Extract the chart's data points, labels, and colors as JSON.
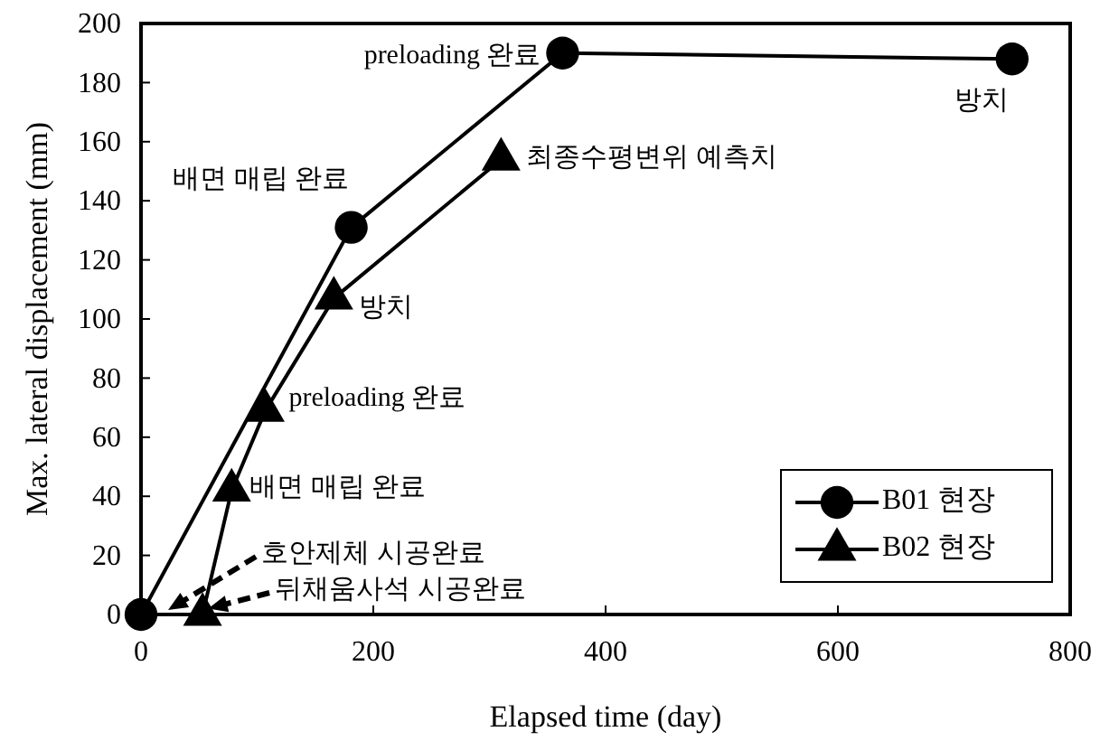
{
  "chart_data": {
    "type": "line",
    "xlabel": "Elapsed time (day)",
    "ylabel": "Max. lateral displacement (mm)",
    "xlim": [
      0,
      800
    ],
    "xticks": [
      0,
      200,
      400,
      600,
      800
    ],
    "ylim": [
      0,
      200
    ],
    "yticks": [
      0,
      20,
      40,
      60,
      80,
      100,
      120,
      140,
      160,
      180,
      200
    ],
    "grid": false,
    "legend": "bottom right",
    "line_style": "solid",
    "series": [
      {
        "name": "B01 현장",
        "color": "#000000",
        "marker": "circle",
        "x": [
          0,
          181,
          363,
          750
        ],
        "values": [
          0,
          131,
          190,
          188
        ]
      },
      {
        "name": "B02 현장",
        "color": "#000000",
        "marker": "triangle",
        "x": [
          53,
          78,
          107,
          166,
          310
        ],
        "values": [
          0,
          42,
          69,
          107,
          154
        ]
      }
    ],
    "annotations": [
      {
        "text": "preloading 완료",
        "x": 363,
        "y": 190
      },
      {
        "text": "배면 매립 완료",
        "x": 181,
        "y": 131
      },
      {
        "text": "방치",
        "x": 750,
        "y": 188
      },
      {
        "text": "최종수평변위 예측치",
        "x": 310,
        "y": 154
      },
      {
        "text": "방치",
        "x": 166,
        "y": 107
      },
      {
        "text": "preloading 완료",
        "x": 107,
        "y": 69
      },
      {
        "text": "배면 매립 완료",
        "x": 78,
        "y": 42
      },
      {
        "text": "호안제체 시공완료",
        "x": 18,
        "y": 0
      },
      {
        "text": "뒤채움사석 시공완료",
        "x": 53,
        "y": 0
      }
    ]
  }
}
